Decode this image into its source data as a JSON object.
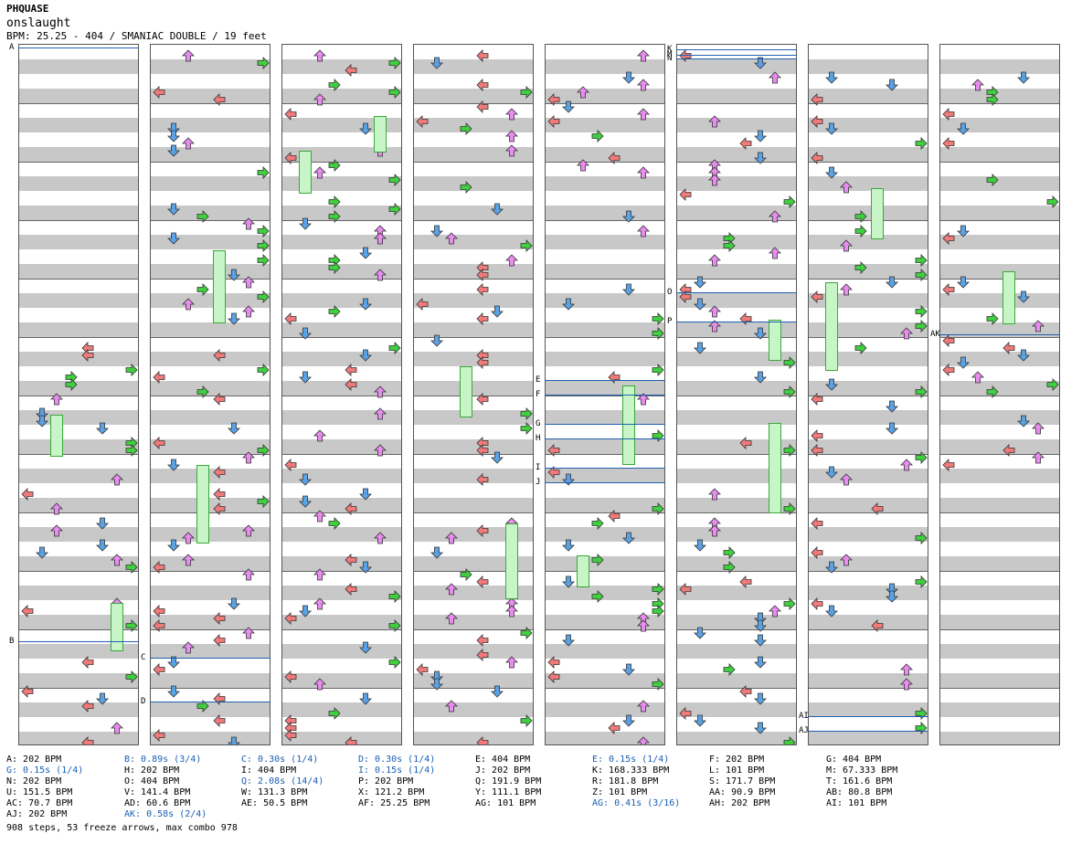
{
  "header": {
    "title": "PHQUASE",
    "subtitle": "onslaught",
    "meta": "BPM: 25.25 - 404 / SMANIAC DOUBLE / 19 feet"
  },
  "colors": {
    "left": "#f07a7a",
    "down": "#5aa2e6",
    "up": "#e88cf0",
    "right": "#3fcf3f",
    "shock": "#f0e040",
    "band": "#c8c8c8",
    "marker_line": "#2060b0",
    "stop_text": "#1a5fb4"
  },
  "markers": [
    {
      "label": "A",
      "column": 0
    },
    {
      "label": "B",
      "column": 0
    },
    {
      "label": "C",
      "column": 1
    },
    {
      "label": "D",
      "column": 1
    },
    {
      "label": "E",
      "column": 4
    },
    {
      "label": "F",
      "column": 4
    },
    {
      "label": "G",
      "column": 4
    },
    {
      "label": "H",
      "column": 4
    },
    {
      "label": "I",
      "column": 4
    },
    {
      "label": "J",
      "column": 4
    },
    {
      "label": "K",
      "column": 5
    },
    {
      "label": "M",
      "column": 5
    },
    {
      "label": "N",
      "column": 5
    },
    {
      "label": "O",
      "column": 5
    },
    {
      "label": "P",
      "column": 5
    },
    {
      "label": "AK",
      "column": 7
    },
    {
      "label": "AI",
      "column": 6
    },
    {
      "label": "AJ",
      "column": 6
    }
  ],
  "legend": [
    [
      "A: 202 BPM",
      "G: 0.15s (1/4)",
      "N: 202 BPM",
      "U: 151.5 BPM",
      "AC: 70.7 BPM",
      "AJ: 202 BPM"
    ],
    [
      "B: 0.89s (3/4)",
      "H: 202 BPM",
      "O: 404 BPM",
      "V: 141.4 BPM",
      "AD: 60.6 BPM",
      "AK: 0.58s (2/4)"
    ],
    [
      "C: 0.30s (1/4)",
      "I: 404 BPM",
      "Q: 2.08s (14/4)",
      "W: 131.3 BPM",
      "AE: 50.5 BPM"
    ],
    [
      "D: 0.30s (1/4)",
      "I: 0.15s (1/4)",
      "P: 202 BPM",
      "X: 121.2 BPM",
      "AF: 25.25 BPM"
    ],
    [
      "E: 404 BPM",
      "J: 202 BPM",
      "Q: 191.9 BPM",
      "Y: 111.1 BPM",
      "AG: 101 BPM"
    ],
    [
      "E: 0.15s (1/4)",
      "K: 168.333 BPM",
      "R: 181.8 BPM",
      "Z: 101 BPM",
      "AG: 0.41s (3/16)"
    ],
    [
      "F: 202 BPM",
      "L: 101 BPM",
      "S: 171.7 BPM",
      "AA: 90.9 BPM",
      "AH: 202 BPM"
    ],
    [
      "G: 404 BPM",
      "M: 67.333 BPM",
      "T: 161.6 BPM",
      "AB: 80.8 BPM",
      "AI: 101 BPM"
    ]
  ],
  "footer": "908 steps, 53 freeze arrows, max combo 978"
}
